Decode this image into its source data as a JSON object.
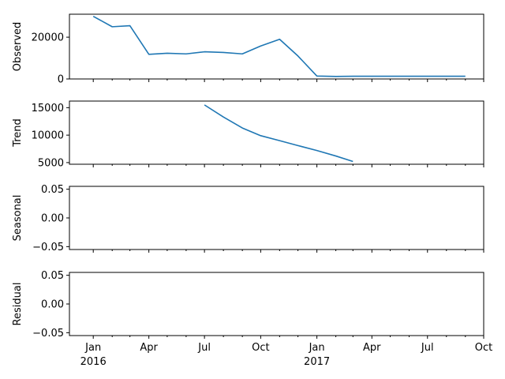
{
  "chart_data": [
    {
      "type": "line",
      "ylabel": "Observed",
      "ylim": [
        0,
        31000
      ],
      "yticks": [
        0,
        20000
      ],
      "ytick_labels": [
        "0",
        "20000"
      ],
      "series": [
        {
          "x": [
            "2016-01",
            "2016-02",
            "2016-03",
            "2016-04",
            "2016-05",
            "2016-06",
            "2016-07",
            "2016-08",
            "2016-09",
            "2016-10",
            "2016-11",
            "2016-12",
            "2017-01",
            "2017-02",
            "2017-03",
            "2017-04",
            "2017-05",
            "2017-06",
            "2017-07",
            "2017-08",
            "2017-09"
          ],
          "values": [
            30000,
            25000,
            25500,
            11800,
            12300,
            12000,
            13000,
            12700,
            12000,
            15800,
            19000,
            11000,
            1400,
            1200,
            1300,
            1300,
            1300,
            1300,
            1300,
            1300,
            1300
          ]
        }
      ]
    },
    {
      "type": "line",
      "ylabel": "Trend",
      "ylim": [
        4700,
        16200
      ],
      "yticks": [
        5000,
        10000,
        15000
      ],
      "ytick_labels": [
        "5000",
        "10000",
        "15000"
      ],
      "series": [
        {
          "x": [
            "2016-07",
            "2016-08",
            "2016-09",
            "2016-10",
            "2016-11",
            "2016-12",
            "2017-01",
            "2017-02",
            "2017-03"
          ],
          "values": [
            15500,
            13300,
            11300,
            9900,
            9000,
            8100,
            7200,
            6200,
            5200
          ]
        }
      ]
    },
    {
      "type": "line",
      "ylabel": "Seasonal",
      "ylim": [
        -0.055,
        0.055
      ],
      "yticks": [
        -0.05,
        0.0,
        0.05
      ],
      "ytick_labels": [
        "−0.05",
        "0.00",
        "0.05"
      ],
      "series": []
    },
    {
      "type": "line",
      "ylabel": "Residual",
      "ylim": [
        -0.055,
        0.055
      ],
      "yticks": [
        -0.05,
        0.0,
        0.05
      ],
      "ytick_labels": [
        "−0.05",
        "0.00",
        "0.05"
      ],
      "series": []
    }
  ],
  "x_axis": {
    "type": "date",
    "range": [
      "2015-11-23",
      "2017-10-01"
    ],
    "major_ticks": [
      {
        "date": "2016-01-01",
        "label": "Jan",
        "sublabel": "2016"
      },
      {
        "date": "2016-04-01",
        "label": "Apr",
        "sublabel": ""
      },
      {
        "date": "2016-07-01",
        "label": "Jul",
        "sublabel": ""
      },
      {
        "date": "2016-10-01",
        "label": "Oct",
        "sublabel": ""
      },
      {
        "date": "2017-01-01",
        "label": "Jan",
        "sublabel": "2017"
      },
      {
        "date": "2017-04-01",
        "label": "Apr",
        "sublabel": ""
      },
      {
        "date": "2017-07-01",
        "label": "Jul",
        "sublabel": ""
      },
      {
        "date": "2017-10-01",
        "label": "Oct",
        "sublabel": ""
      }
    ],
    "minor_ticks": [
      "2016-02-01",
      "2016-03-01",
      "2016-05-01",
      "2016-06-01",
      "2016-08-01",
      "2016-09-01",
      "2016-11-01",
      "2016-12-01",
      "2017-02-01",
      "2017-03-01",
      "2017-05-01",
      "2017-06-01",
      "2017-08-01",
      "2017-09-01"
    ]
  },
  "colors": {
    "series": "#1f77b4",
    "axis": "#000000"
  }
}
